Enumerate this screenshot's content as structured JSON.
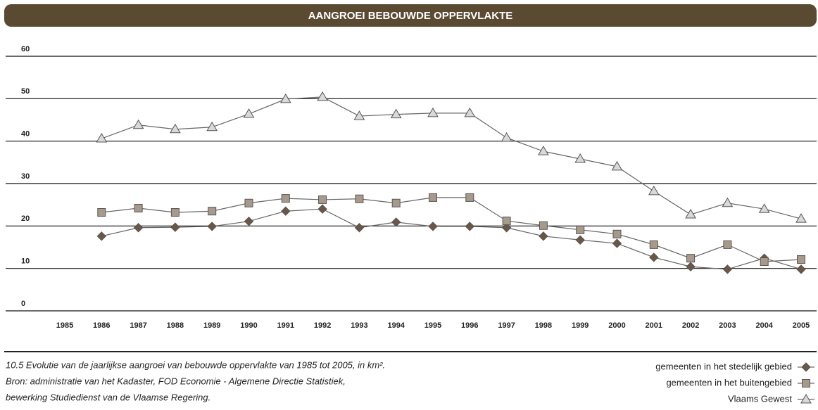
{
  "chart_data": {
    "type": "line",
    "title": "AANGROEI BEBOUWDE OPPERVLAKTE",
    "caption": [
      "10.5  Evolutie van de jaarlijkse aangroei van bebouwde oppervlakte van 1985 tot 2005, in km².",
      "Bron: administratie van het Kadaster, FOD Economie - Algemene Directie Statistiek,",
      "bewerking Studiedienst van de Vlaamse Regering."
    ],
    "categories": [
      "1985",
      "1986",
      "1987",
      "1988",
      "1989",
      "1990",
      "1991",
      "1992",
      "1993",
      "1994",
      "1995",
      "1996",
      "1997",
      "1998",
      "1999",
      "2000",
      "2001",
      "2002",
      "2003",
      "2004",
      "2005"
    ],
    "series": [
      {
        "name": "gemeenten in het stedelijk gebied",
        "color": "#6b5744",
        "marker": "diamond",
        "values": [
          null,
          17.6,
          19.6,
          19.7,
          19.9,
          21.1,
          23.5,
          24.0,
          19.6,
          20.9,
          19.9,
          19.9,
          19.6,
          17.6,
          16.7,
          15.9,
          12.6,
          10.4,
          9.8,
          12.4,
          9.8
        ]
      },
      {
        "name": "gemeenten in het buitengebied",
        "color": "#a89a8a",
        "marker": "square",
        "values": [
          null,
          23.2,
          24.2,
          23.2,
          23.5,
          25.4,
          26.5,
          26.2,
          26.4,
          25.4,
          26.7,
          26.7,
          21.2,
          20.1,
          19.1,
          18.1,
          15.6,
          12.4,
          15.6,
          11.6,
          12.1
        ]
      },
      {
        "name": "Vlaams Gewest",
        "color": "#d9d9d9",
        "marker": "triangle",
        "values": [
          null,
          40.6,
          43.8,
          42.8,
          43.3,
          46.4,
          49.9,
          50.4,
          45.9,
          46.3,
          46.6,
          46.6,
          40.8,
          37.6,
          35.8,
          34.0,
          28.2,
          22.7,
          25.4,
          24.0,
          21.7
        ]
      }
    ],
    "ylim": [
      0,
      60
    ],
    "yticks": [
      0,
      10,
      20,
      30,
      40,
      50,
      60
    ],
    "grid": true
  }
}
